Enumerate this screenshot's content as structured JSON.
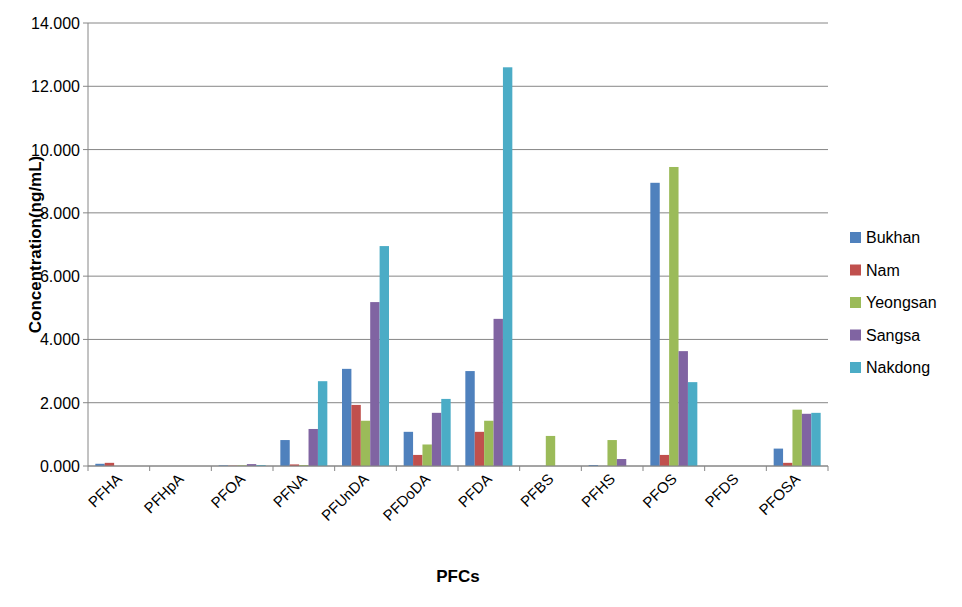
{
  "chart_data": {
    "type": "bar",
    "x_label": "PFCs",
    "y_label": "Concentration(ng/mL)",
    "categories": [
      "PFHA",
      "PFHpA",
      "PFOA",
      "PFNA",
      "PFUnDA",
      "PFDoDA",
      "PFDA",
      "PFBS",
      "PFHS",
      "PFOS",
      "PFDS",
      "PFOSA"
    ],
    "series": [
      {
        "name": "Bukhan",
        "color": "#4f81bd",
        "values": [
          0.07,
          0,
          0.02,
          0.82,
          3.07,
          1.08,
          3.0,
          0,
          0.03,
          8.95,
          0,
          0.55
        ]
      },
      {
        "name": "Nam",
        "color": "#c0504d",
        "values": [
          0.1,
          0,
          0.01,
          0.05,
          1.93,
          0.35,
          1.08,
          0,
          0,
          0.35,
          0,
          0.1
        ]
      },
      {
        "name": "Yeongsan",
        "color": "#9bbb59",
        "values": [
          0,
          0,
          0.02,
          0.03,
          1.43,
          0.68,
          1.43,
          0.95,
          0.82,
          9.45,
          0,
          1.78
        ]
      },
      {
        "name": "Sangsa",
        "color": "#8064a2",
        "values": [
          0,
          0,
          0.06,
          1.17,
          5.18,
          1.68,
          4.65,
          0,
          0.22,
          3.63,
          0,
          1.65
        ]
      },
      {
        "name": "Nakdong",
        "color": "#4bacc6",
        "values": [
          0,
          0,
          0.03,
          2.68,
          6.95,
          2.12,
          12.6,
          0,
          0,
          2.65,
          0,
          1.68
        ]
      }
    ],
    "ylim": [
      0,
      14
    ],
    "yticks": [
      {
        "value": 0,
        "label": "0.000"
      },
      {
        "value": 2,
        "label": "2.000"
      },
      {
        "value": 4,
        "label": "4.000"
      },
      {
        "value": 6,
        "label": "6.000"
      },
      {
        "value": 8,
        "label": "8.000"
      },
      {
        "value": 10,
        "label": "10.000"
      },
      {
        "value": 12,
        "label": "12.000"
      },
      {
        "value": 14,
        "label": "14.000"
      }
    ],
    "grid": true,
    "legend": "right"
  }
}
